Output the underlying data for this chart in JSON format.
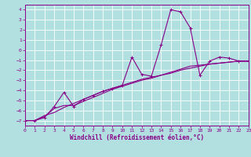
{
  "xlabel": "Windchill (Refroidissement éolien,°C)",
  "background_color": "#b2dfdf",
  "grid_color": "#ffffff",
  "line_color": "#880088",
  "x": [
    0,
    1,
    2,
    3,
    4,
    5,
    6,
    7,
    8,
    9,
    10,
    11,
    12,
    13,
    14,
    15,
    16,
    17,
    18,
    19,
    20,
    21,
    22,
    23
  ],
  "y_jagged": [
    -7.0,
    -7.0,
    -6.7,
    -5.6,
    -4.2,
    -5.6,
    -4.9,
    -4.5,
    -4.1,
    -3.8,
    -3.5,
    -0.7,
    -2.4,
    -2.6,
    0.5,
    4.0,
    3.8,
    2.2,
    -2.5,
    -1.1,
    -0.7,
    -0.8,
    -1.1,
    -1.1
  ],
  "y_ref1": [
    -7.0,
    -7.0,
    -6.6,
    -5.8,
    -5.5,
    -5.5,
    -5.1,
    -4.7,
    -4.3,
    -3.9,
    -3.6,
    -3.3,
    -3.0,
    -2.8,
    -2.5,
    -2.2,
    -1.9,
    -1.6,
    -1.5,
    -1.4,
    -1.3,
    -1.2,
    -1.1,
    -1.1
  ],
  "y_ref2": [
    -7.0,
    -7.0,
    -6.5,
    -6.2,
    -5.7,
    -5.3,
    -4.9,
    -4.5,
    -4.1,
    -3.8,
    -3.5,
    -3.2,
    -2.9,
    -2.7,
    -2.5,
    -2.3,
    -2.0,
    -1.8,
    -1.6,
    -1.4,
    -1.3,
    -1.2,
    -1.1,
    -1.1
  ],
  "ylim": [
    -7.5,
    4.5
  ],
  "xlim": [
    0,
    23
  ],
  "yticks": [
    -7,
    -6,
    -5,
    -4,
    -3,
    -2,
    -1,
    0,
    1,
    2,
    3,
    4
  ],
  "xticks": [
    0,
    1,
    2,
    3,
    4,
    5,
    6,
    7,
    8,
    9,
    10,
    11,
    12,
    13,
    14,
    15,
    16,
    17,
    18,
    19,
    20,
    21,
    22,
    23
  ],
  "tick_fontsize": 4.5,
  "xlabel_fontsize": 5.5
}
